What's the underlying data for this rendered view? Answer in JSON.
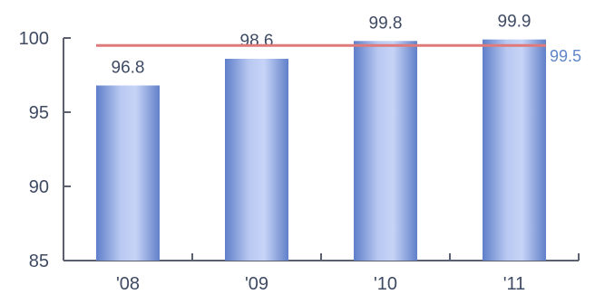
{
  "chart_data": {
    "type": "bar",
    "categories": [
      "'08",
      "'09",
      "'10",
      "'11"
    ],
    "values": [
      96.8,
      98.6,
      99.8,
      99.9
    ],
    "data_labels": [
      "96.8",
      "98.6",
      "99.8",
      "99.9"
    ],
    "ylim": [
      85,
      100
    ],
    "y_ticks": [
      85,
      90,
      95,
      100
    ],
    "y_tick_labels": [
      "85",
      "90",
      "95",
      "100"
    ],
    "reference_line": {
      "value": 99.5,
      "label": "99.5",
      "color": "#df7a7a"
    },
    "bar_color": "#7c96d6",
    "grid": false,
    "title": "",
    "xlabel": "",
    "ylabel": ""
  }
}
